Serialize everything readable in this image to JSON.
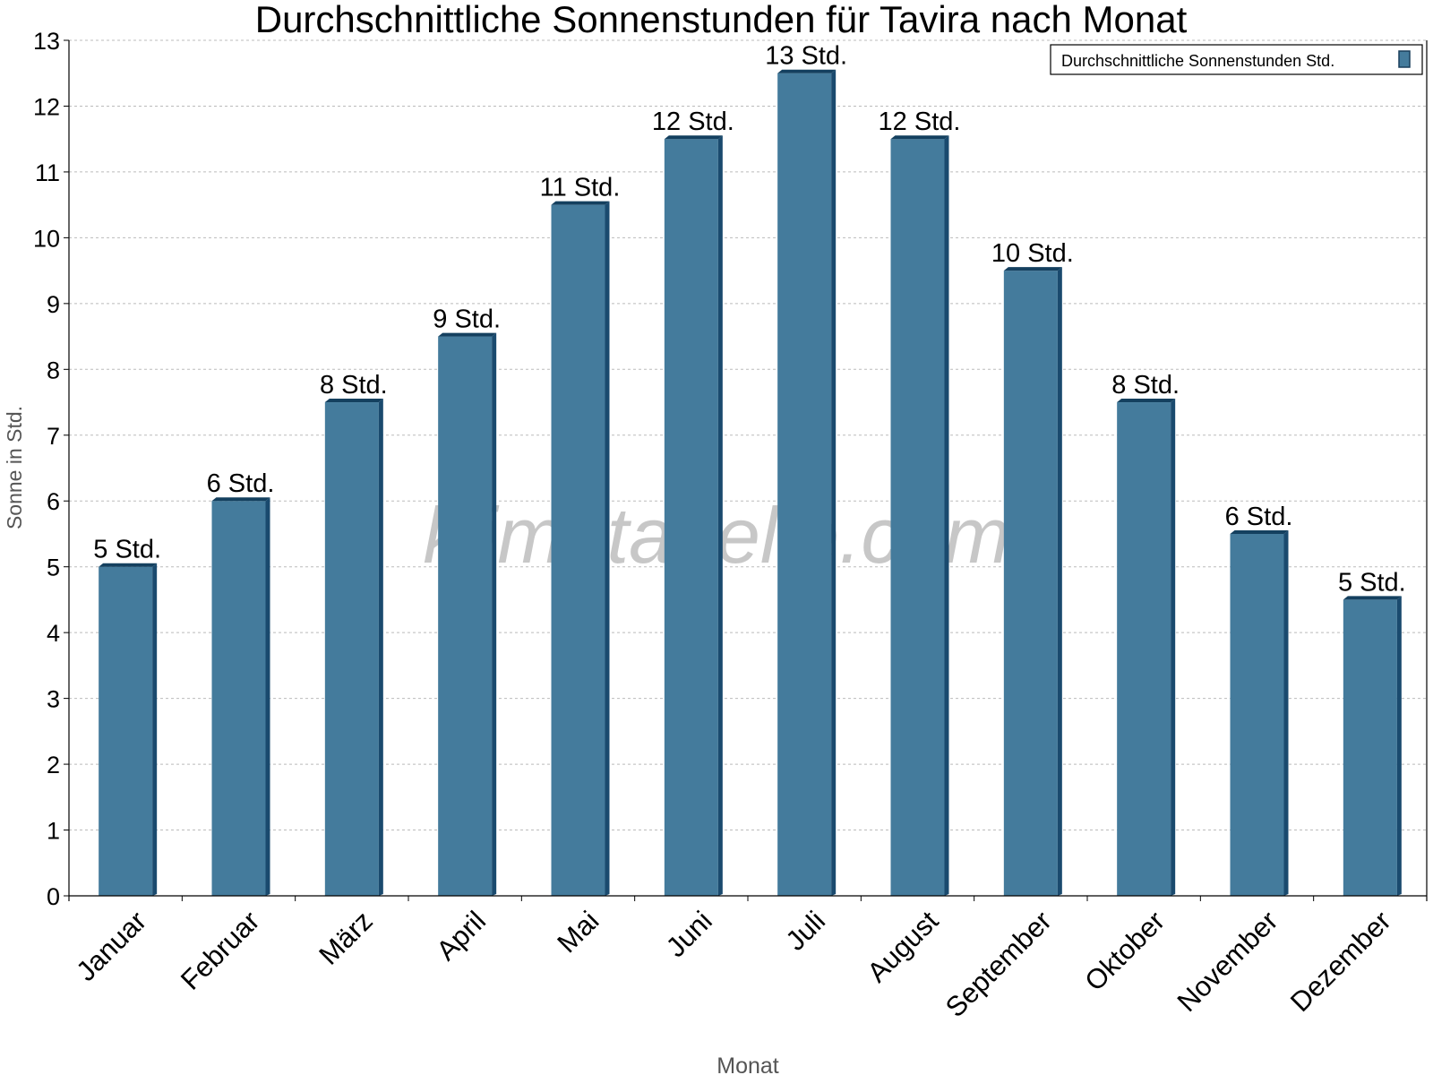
{
  "chart_data": {
    "type": "bar",
    "title": "Durchschnittliche Sonnenstunden für Tavira nach Monat",
    "xlabel": "Monat",
    "ylabel": "Sonne in Std.",
    "ylim": [
      0,
      13
    ],
    "yticks": [
      0,
      1,
      2,
      3,
      4,
      5,
      6,
      7,
      8,
      9,
      10,
      11,
      12,
      13
    ],
    "grid": true,
    "legend_position": "top-right",
    "categories": [
      "Januar",
      "Februar",
      "März",
      "April",
      "Mai",
      "Juni",
      "Juli",
      "August",
      "September",
      "Oktober",
      "November",
      "Dezember"
    ],
    "series": [
      {
        "name": "Durchschnittliche Sonnenstunden Std.",
        "color": "#447b9c",
        "values": [
          5.0,
          6.0,
          7.5,
          8.5,
          10.5,
          11.5,
          12.5,
          11.5,
          9.5,
          7.5,
          5.5,
          4.5
        ],
        "data_labels": [
          "5 Std.",
          "6 Std.",
          "8 Std.",
          "9 Std.",
          "11 Std.",
          "12 Std.",
          "13 Std.",
          "12 Std.",
          "10 Std.",
          "8 Std.",
          "6 Std.",
          "5 Std."
        ]
      }
    ],
    "watermark": "klimatabelle.com"
  }
}
